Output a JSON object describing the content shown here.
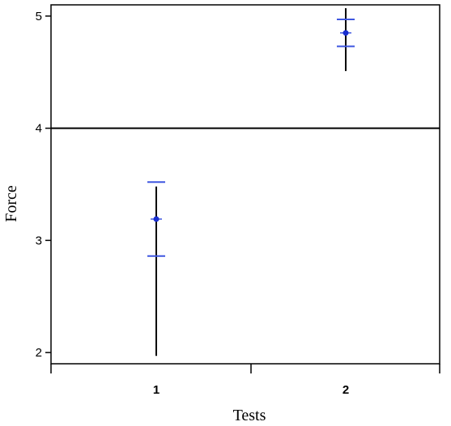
{
  "chart_data": {
    "type": "scatter",
    "xlabel": "Tests",
    "ylabel": "Force",
    "categories": [
      "1",
      "2"
    ],
    "ylim": [
      1.9,
      5.1
    ],
    "y_ticks": [
      "2",
      "3",
      "4",
      "5"
    ],
    "grid": false,
    "reference_line": {
      "y": 4.0
    },
    "series": [
      {
        "points": [
          {
            "x": "1",
            "mean": 3.19,
            "bar_low": 1.97,
            "bar_high": 3.48,
            "ci_low": 2.86,
            "ci_high": 3.52
          },
          {
            "x": "2",
            "mean": 4.85,
            "bar_low": 4.51,
            "bar_high": 5.07,
            "ci_low": 4.73,
            "ci_high": 4.97
          }
        ]
      }
    ],
    "colors": {
      "axis": "#000000",
      "marker": "#1a2fd0",
      "ci_cap": "#3f57e0",
      "whisker": "#000000",
      "reference_line": "#000000"
    }
  }
}
